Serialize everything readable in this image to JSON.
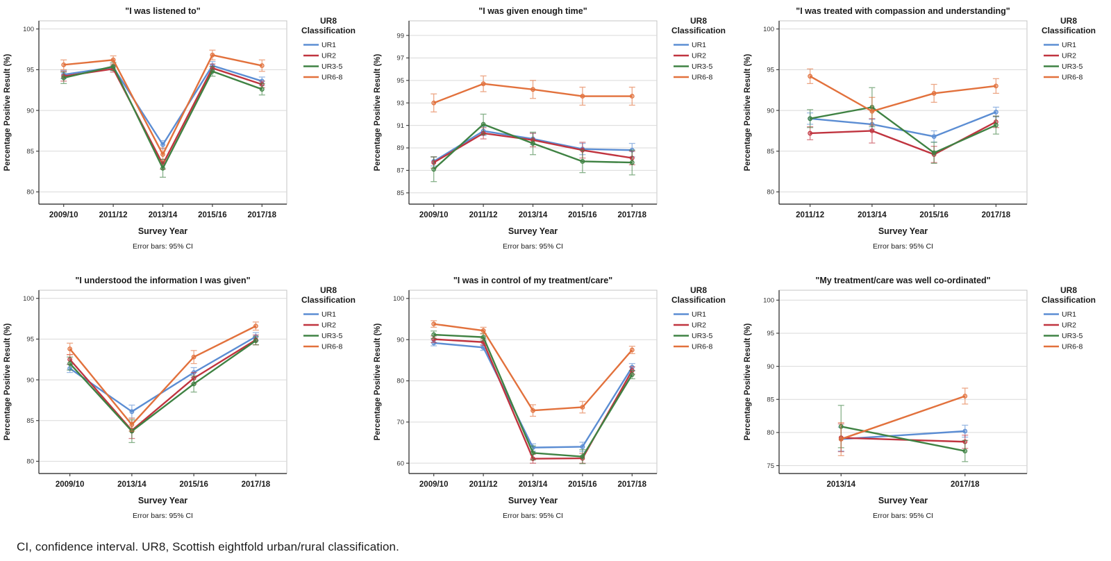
{
  "caption": "CI, confidence interval. UR8, Scottish eightfold urban/rural classification.",
  "legend_title_lines": [
    "UR8",
    "Classification"
  ],
  "palette": {
    "UR1": "#5B8DD3",
    "UR2": "#C0343F",
    "UR3-5": "#3F8243",
    "UR6-8": "#E2713C"
  },
  "axis_colors": {
    "frame": "#c4c4c4",
    "grid": "#d9d9d9",
    "axis": "#404040",
    "tick_label": "#333333",
    "text": "#1a1a1a"
  },
  "chart_data": [
    {
      "type": "line",
      "title": "\"I was listened to\"",
      "xlabel": "Survey Year",
      "ylabel": "Percentage Positive Result (%)",
      "footnote": "Error bars: 95% CI",
      "legend_position": "right",
      "grid": true,
      "categories": [
        "2009/10",
        "2011/12",
        "2013/14",
        "2015/16",
        "2017/18"
      ],
      "y_ticks": [
        80,
        85,
        90,
        95,
        100
      ],
      "y_range": [
        78.5,
        101
      ],
      "series": [
        {
          "name": "UR1",
          "values": [
            94.4,
            95.3,
            85.8,
            95.5,
            93.6
          ],
          "errors": [
            0.5,
            0.4,
            0.5,
            0.5,
            0.5
          ]
        },
        {
          "name": "UR2",
          "values": [
            94.2,
            95.1,
            83.4,
            95.2,
            93.2
          ],
          "errors": [
            0.6,
            0.4,
            0.6,
            0.5,
            0.4
          ]
        },
        {
          "name": "UR3-5",
          "values": [
            94.0,
            95.4,
            82.9,
            94.8,
            92.6
          ],
          "errors": [
            0.7,
            0.5,
            1.1,
            0.6,
            0.7
          ]
        },
        {
          "name": "UR6-8",
          "values": [
            95.6,
            96.2,
            84.6,
            96.8,
            95.5
          ],
          "errors": [
            0.6,
            0.5,
            0.8,
            0.6,
            0.7
          ]
        }
      ]
    },
    {
      "type": "line",
      "title": "\"I was given enough time\"",
      "xlabel": "Survey Year",
      "ylabel": "Percentage Positive Result (%)",
      "footnote": "Error bars: 95% CI",
      "legend_position": "right",
      "grid": true,
      "categories": [
        "2009/10",
        "2011/12",
        "2013/14",
        "2015/16",
        "2017/18"
      ],
      "y_ticks": [
        85,
        87,
        89,
        91,
        93,
        95,
        97,
        99
      ],
      "y_range": [
        84,
        100.3
      ],
      "series": [
        {
          "name": "UR1",
          "values": [
            87.8,
            90.5,
            89.8,
            88.9,
            88.8
          ],
          "errors": [
            0.4,
            0.4,
            0.5,
            0.5,
            0.6
          ]
        },
        {
          "name": "UR2",
          "values": [
            87.7,
            90.3,
            89.7,
            88.8,
            88.1
          ],
          "errors": [
            0.5,
            0.5,
            0.6,
            0.7,
            0.6
          ]
        },
        {
          "name": "UR3-5",
          "values": [
            87.1,
            91.1,
            89.4,
            87.8,
            87.7
          ],
          "errors": [
            1.1,
            0.9,
            1.0,
            1.0,
            1.1
          ]
        },
        {
          "name": "UR6-8",
          "values": [
            93.0,
            94.7,
            94.2,
            93.6,
            93.6
          ],
          "errors": [
            0.8,
            0.7,
            0.8,
            0.8,
            0.8
          ]
        }
      ]
    },
    {
      "type": "line",
      "title": "\"I was treated with compassion and understanding\"",
      "xlabel": "Survey Year",
      "ylabel": "Percentage Positive Result (%)",
      "footnote": "Error bars: 95% CI",
      "legend_position": "right",
      "grid": true,
      "categories": [
        "2011/12",
        "2013/14",
        "2015/16",
        "2017/18"
      ],
      "y_ticks": [
        80,
        85,
        90,
        95,
        100
      ],
      "y_range": [
        78.5,
        101
      ],
      "series": [
        {
          "name": "UR1",
          "values": [
            89.0,
            88.3,
            86.8,
            89.8
          ],
          "errors": [
            0.7,
            0.6,
            0.7,
            0.6
          ]
        },
        {
          "name": "UR2",
          "values": [
            87.2,
            87.5,
            84.6,
            88.6
          ],
          "errors": [
            0.8,
            1.5,
            1.0,
            0.7
          ]
        },
        {
          "name": "UR3-5",
          "values": [
            89.0,
            90.4,
            84.8,
            88.2
          ],
          "errors": [
            1.1,
            2.4,
            1.3,
            1.1
          ]
        },
        {
          "name": "UR6-8",
          "values": [
            94.2,
            89.9,
            92.1,
            93.0
          ],
          "errors": [
            0.9,
            1.7,
            1.1,
            0.9
          ]
        }
      ]
    },
    {
      "type": "line",
      "title": "\"I understood the information I was given\"",
      "xlabel": "Survey Year",
      "ylabel": "Percentage Positive Result (%)",
      "footnote": "Error bars: 95% CI",
      "legend_position": "right",
      "grid": true,
      "categories": [
        "2009/10",
        "2013/14",
        "2015/16",
        "2017/18"
      ],
      "y_ticks": [
        80,
        85,
        90,
        95,
        100
      ],
      "y_range": [
        78.5,
        101
      ],
      "series": [
        {
          "name": "UR1",
          "values": [
            91.4,
            86.1,
            90.9,
            95.3
          ],
          "errors": [
            0.5,
            0.8,
            0.6,
            0.5
          ]
        },
        {
          "name": "UR2",
          "values": [
            92.5,
            83.8,
            90.2,
            94.9
          ],
          "errors": [
            0.6,
            1.0,
            0.7,
            0.6
          ]
        },
        {
          "name": "UR3-5",
          "values": [
            92.0,
            83.7,
            89.5,
            94.8
          ],
          "errors": [
            0.8,
            1.4,
            1.0,
            0.5
          ]
        },
        {
          "name": "UR6-8",
          "values": [
            93.8,
            84.5,
            92.8,
            96.6
          ],
          "errors": [
            0.7,
            0.8,
            0.8,
            0.5
          ]
        }
      ]
    },
    {
      "type": "line",
      "title": "\"I was in control of my treatment/care\"",
      "xlabel": "Survey Year",
      "ylabel": "Percentage Positive Result (%)",
      "footnote": "Error bars: 95% CI",
      "legend_position": "right",
      "grid": true,
      "categories": [
        "2009/10",
        "2011/12",
        "2013/14",
        "2015/16",
        "2017/18"
      ],
      "y_ticks": [
        60,
        70,
        80,
        90,
        100
      ],
      "y_range": [
        57.5,
        102
      ],
      "series": [
        {
          "name": "UR1",
          "values": [
            89.2,
            88.1,
            63.8,
            64.0,
            83.3
          ],
          "errors": [
            0.7,
            0.7,
            0.9,
            1.1,
            0.9
          ]
        },
        {
          "name": "UR2",
          "values": [
            90.1,
            89.4,
            61.1,
            61.2,
            82.5
          ],
          "errors": [
            0.8,
            0.8,
            1.1,
            1.2,
            0.9
          ]
        },
        {
          "name": "UR3-5",
          "values": [
            91.2,
            90.6,
            62.5,
            61.6,
            81.5
          ],
          "errors": [
            0.9,
            0.9,
            1.7,
            1.7,
            1.0
          ]
        },
        {
          "name": "UR6-8",
          "values": [
            93.8,
            92.2,
            72.8,
            73.6,
            87.5
          ],
          "errors": [
            0.8,
            0.8,
            1.4,
            1.4,
            0.9
          ]
        }
      ]
    },
    {
      "type": "line",
      "title": "\"My treatment/care was well co-ordinated\"",
      "xlabel": "Survey Year",
      "ylabel": "Percentage Positive Result (%)",
      "footnote": "Error bars: 95% CI",
      "legend_position": "right",
      "grid": true,
      "categories": [
        "2013/14",
        "2017/18"
      ],
      "y_ticks": [
        75,
        80,
        85,
        90,
        95,
        100
      ],
      "y_range": [
        73.8,
        101.5
      ],
      "series": [
        {
          "name": "UR1",
          "values": [
            79.0,
            80.2
          ],
          "errors": [
            1.8,
            0.9
          ]
        },
        {
          "name": "UR2",
          "values": [
            79.2,
            78.6
          ],
          "errors": [
            2.1,
            1.0
          ]
        },
        {
          "name": "UR3-5",
          "values": [
            80.9,
            77.2
          ],
          "errors": [
            3.2,
            1.6
          ]
        },
        {
          "name": "UR6-8",
          "values": [
            79.0,
            85.5
          ],
          "errors": [
            2.5,
            1.2
          ]
        }
      ]
    }
  ]
}
